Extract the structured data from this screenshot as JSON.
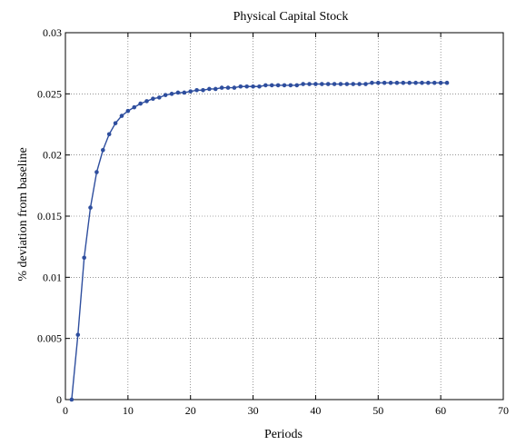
{
  "chart_data": {
    "type": "line",
    "title": "Physical Capital Stock",
    "xlabel": "Periods",
    "ylabel": "% deviation from baseline",
    "xlim": [
      0,
      70
    ],
    "ylim": [
      0,
      0.03
    ],
    "xticks": [
      0,
      10,
      20,
      30,
      40,
      50,
      60,
      70
    ],
    "yticks": [
      0,
      0.005,
      0.01,
      0.015,
      0.02,
      0.025,
      0.03
    ],
    "xtick_labels": [
      "0",
      "10",
      "20",
      "30",
      "40",
      "50",
      "60",
      "70"
    ],
    "ytick_labels": [
      "0",
      "0.005",
      "0.01",
      "0.015",
      "0.02",
      "0.025",
      "0.03"
    ],
    "grid": true,
    "series": [
      {
        "color": "#2e4e9e",
        "marker": "dot",
        "x": [
          1,
          2,
          3,
          4,
          5,
          6,
          7,
          8,
          9,
          10,
          11,
          12,
          13,
          14,
          15,
          16,
          17,
          18,
          19,
          20,
          21,
          22,
          23,
          24,
          25,
          26,
          27,
          28,
          29,
          30,
          31,
          32,
          33,
          34,
          35,
          36,
          37,
          38,
          39,
          40,
          41,
          42,
          43,
          44,
          45,
          46,
          47,
          48,
          49,
          50,
          51,
          52,
          53,
          54,
          55,
          56,
          57,
          58,
          59,
          60,
          61
        ],
        "y": [
          0,
          0.0053,
          0.0116,
          0.0157,
          0.0186,
          0.0204,
          0.0217,
          0.0226,
          0.0232,
          0.0236,
          0.0239,
          0.0242,
          0.0244,
          0.0246,
          0.0247,
          0.0249,
          0.025,
          0.0251,
          0.0251,
          0.0252,
          0.0253,
          0.0253,
          0.0254,
          0.0254,
          0.0255,
          0.0255,
          0.0255,
          0.0256,
          0.0256,
          0.0256,
          0.0256,
          0.0257,
          0.0257,
          0.0257,
          0.0257,
          0.0257,
          0.0257,
          0.0258,
          0.0258,
          0.0258,
          0.0258,
          0.0258,
          0.0258,
          0.0258,
          0.0258,
          0.0258,
          0.0258,
          0.0258,
          0.0259,
          0.0259,
          0.0259,
          0.0259,
          0.0259,
          0.0259,
          0.0259,
          0.0259,
          0.0259,
          0.0259,
          0.0259,
          0.0259,
          0.0259
        ]
      }
    ]
  }
}
